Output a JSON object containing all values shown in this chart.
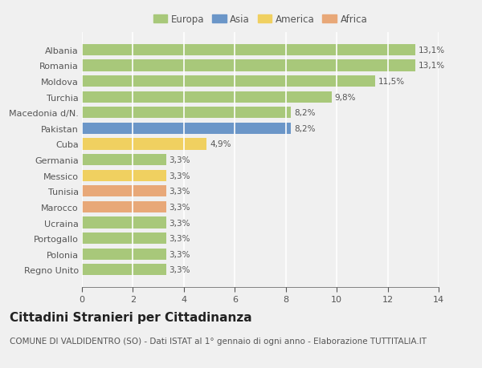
{
  "countries": [
    "Albania",
    "Romania",
    "Moldova",
    "Turchia",
    "Macedonia d/N.",
    "Pakistan",
    "Cuba",
    "Germania",
    "Messico",
    "Tunisia",
    "Marocco",
    "Ucraina",
    "Portogallo",
    "Polonia",
    "Regno Unito"
  ],
  "values": [
    13.1,
    13.1,
    11.5,
    9.8,
    8.2,
    8.2,
    4.9,
    3.3,
    3.3,
    3.3,
    3.3,
    3.3,
    3.3,
    3.3,
    3.3
  ],
  "continents": [
    "Europa",
    "Europa",
    "Europa",
    "Europa",
    "Europa",
    "Asia",
    "America",
    "Europa",
    "America",
    "Africa",
    "Africa",
    "Europa",
    "Europa",
    "Europa",
    "Europa"
  ],
  "labels": [
    "13,1%",
    "13,1%",
    "11,5%",
    "9,8%",
    "8,2%",
    "8,2%",
    "4,9%",
    "3,3%",
    "3,3%",
    "3,3%",
    "3,3%",
    "3,3%",
    "3,3%",
    "3,3%",
    "3,3%"
  ],
  "colors": {
    "Europa": "#a8c87a",
    "Asia": "#6b96c8",
    "America": "#f0d060",
    "Africa": "#e8a878"
  },
  "legend_order": [
    "Europa",
    "Asia",
    "America",
    "Africa"
  ],
  "xlim": [
    0,
    14
  ],
  "xticks": [
    0,
    2,
    4,
    6,
    8,
    10,
    12,
    14
  ],
  "title": "Cittadini Stranieri per Cittadinanza",
  "subtitle": "COMUNE DI VALDIDENTRO (SO) - Dati ISTAT al 1° gennaio di ogni anno - Elaborazione TUTTITALIA.IT",
  "background_color": "#f0f0f0",
  "plot_bg_color": "#f0f0f0",
  "grid_color": "#ffffff",
  "bar_height": 0.72,
  "title_fontsize": 11,
  "subtitle_fontsize": 7.5,
  "label_fontsize": 7.5,
  "tick_fontsize": 8,
  "legend_fontsize": 8.5,
  "text_color": "#555555",
  "title_color": "#222222"
}
